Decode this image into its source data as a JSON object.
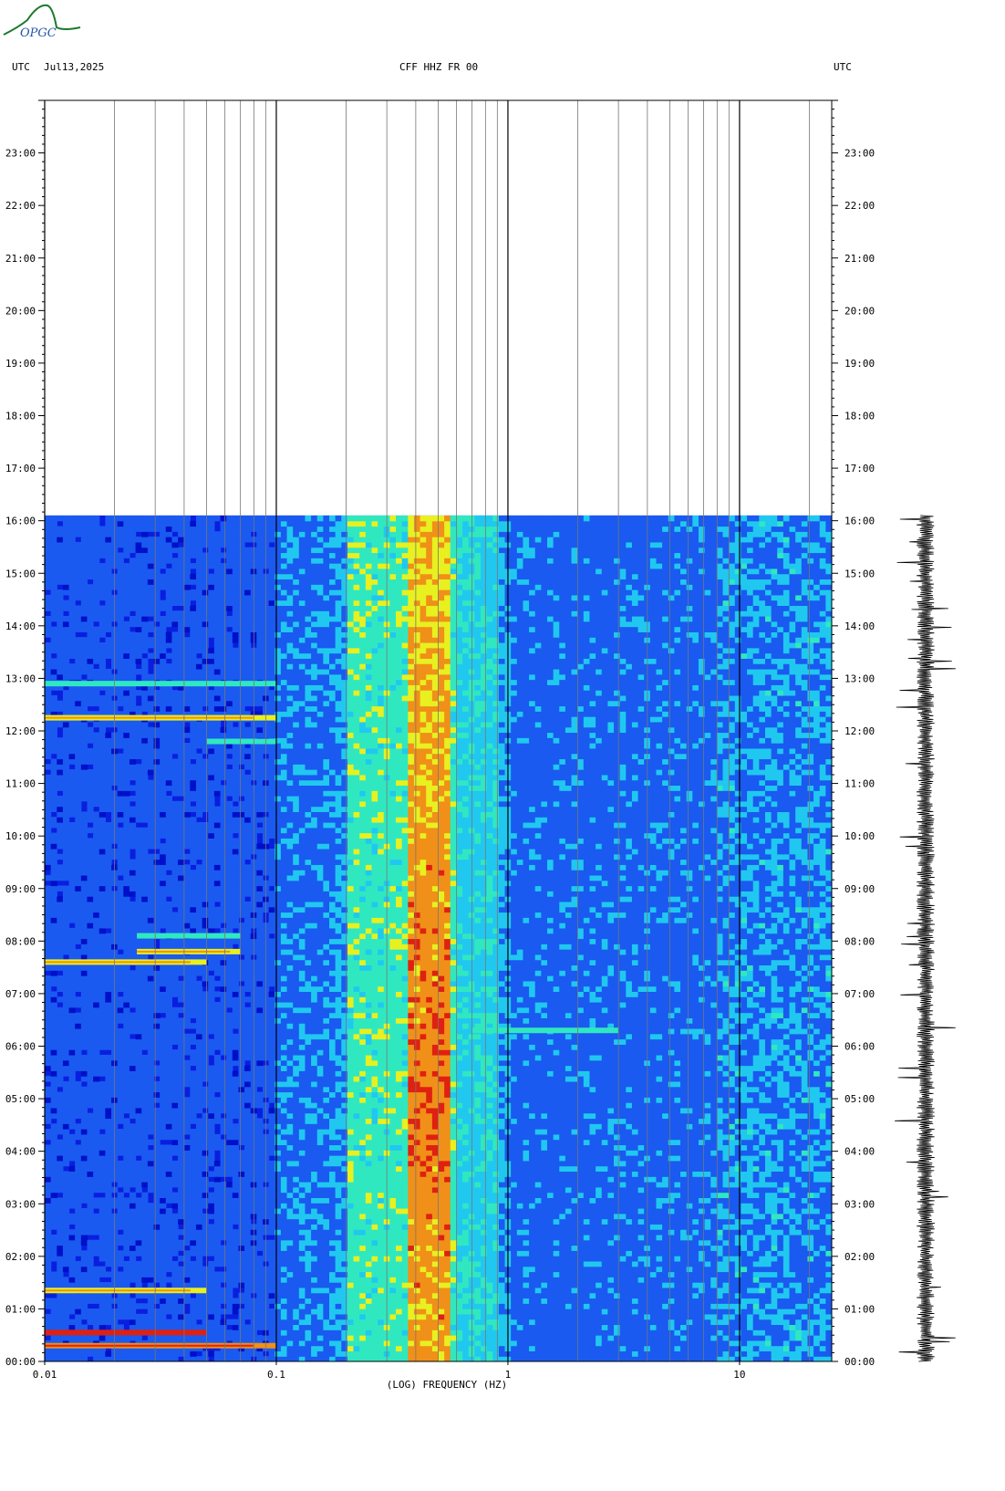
{
  "logo": {
    "text": "OPGC",
    "color": "#1a7a2e",
    "text_color": "#2255aa"
  },
  "header": {
    "left_tz": "UTC",
    "date": "Jul13,2025",
    "station": "CFF HHZ FR 00",
    "right_tz": "UTC"
  },
  "colors": {
    "background_fill": "#0a1ee0",
    "scale": [
      "#0010c8",
      "#1a5af0",
      "#20c8f0",
      "#30e8c0",
      "#e8f020",
      "#f09018",
      "#e02010"
    ]
  },
  "chart_data": {
    "type": "heatmap",
    "xlabel": "(LOG) FREQUENCY (HZ)",
    "x_scale": "log",
    "xlim": [
      0.01,
      25
    ],
    "x_ticks": [
      {
        "value": 0.01,
        "label": "0.01"
      },
      {
        "value": 0.1,
        "label": "0.1"
      },
      {
        "value": 1,
        "label": "1"
      },
      {
        "value": 10,
        "label": "10"
      }
    ],
    "ylim_hours": [
      0,
      24
    ],
    "data_end_hour": 16.1,
    "y_ticks": [
      "00:00",
      "01:00",
      "02:00",
      "03:00",
      "04:00",
      "05:00",
      "06:00",
      "07:00",
      "08:00",
      "09:00",
      "10:00",
      "11:00",
      "12:00",
      "13:00",
      "14:00",
      "15:00",
      "16:00",
      "17:00",
      "18:00",
      "19:00",
      "20:00",
      "21:00",
      "22:00",
      "23:00"
    ],
    "energy_band_hz": [
      0.2,
      0.6
    ],
    "peak_band_hz": [
      0.38,
      0.55
    ],
    "horizontal_events": [
      {
        "time_hour": 0.3,
        "fmin": 0.01,
        "fmax": 0.1,
        "level": 5
      },
      {
        "time_hour": 0.55,
        "fmin": 0.01,
        "fmax": 0.05,
        "level": 6
      },
      {
        "time_hour": 1.35,
        "fmin": 0.01,
        "fmax": 0.05,
        "level": 4
      },
      {
        "time_hour": 7.6,
        "fmin": 0.01,
        "fmax": 0.05,
        "level": 4
      },
      {
        "time_hour": 7.8,
        "fmin": 0.025,
        "fmax": 0.07,
        "level": 4
      },
      {
        "time_hour": 8.1,
        "fmin": 0.025,
        "fmax": 0.07,
        "level": 3
      },
      {
        "time_hour": 12.25,
        "fmin": 0.01,
        "fmax": 0.1,
        "level": 4
      },
      {
        "time_hour": 12.9,
        "fmin": 0.01,
        "fmax": 0.1,
        "level": 3
      },
      {
        "time_hour": 11.8,
        "fmin": 0.05,
        "fmax": 0.1,
        "level": 3
      },
      {
        "time_hour": 6.3,
        "fmin": 0.7,
        "fmax": 3,
        "level": 3
      }
    ]
  }
}
